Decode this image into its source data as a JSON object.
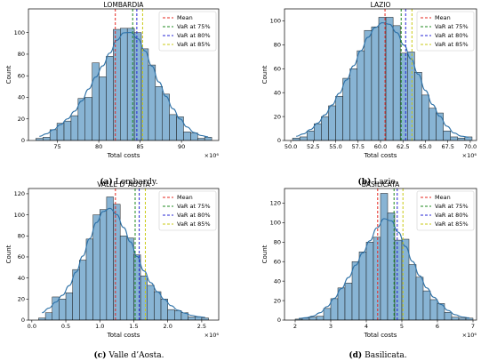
{
  "figure": {
    "captions": [
      {
        "label": "(a)",
        "text": "Lombardy."
      },
      {
        "label": "(b)",
        "text": "Lazio."
      },
      {
        "label": "(c)",
        "text": "Valle d’Aosta."
      },
      {
        "label": "(d)",
        "text": "Basilicata."
      }
    ]
  },
  "colors": {
    "bar_fill": "#88b4d4",
    "bar_edge": "#1a1a1a",
    "kde": "#2e72a8",
    "mean": "#e5271f",
    "var75": "#1f8a1f",
    "var80": "#2424d6",
    "var85": "#c9c914"
  },
  "chart_data": [
    {
      "type": "histogram",
      "title": "LOMBARDIA",
      "xlabel": "Total costs",
      "ylabel": "Count",
      "multiplier": "×10⁶",
      "xlim": [
        71.5,
        94.5
      ],
      "ylim": [
        0,
        122
      ],
      "xticks": [
        75,
        80,
        85,
        90
      ],
      "yticks": [
        0,
        20,
        40,
        60,
        80,
        100
      ],
      "bin_start": 72.4,
      "bin_width": 0.85,
      "counts": [
        2,
        3,
        10,
        16,
        18,
        23,
        39,
        40,
        72,
        59,
        78,
        103,
        104,
        104,
        100,
        85,
        70,
        50,
        43,
        24,
        22,
        8,
        7,
        2,
        3
      ],
      "lines": [
        {
          "name": "Mean",
          "x": 82.0,
          "key": "mean"
        },
        {
          "name": "VaR at 75%",
          "x": 84.1,
          "key": "var75"
        },
        {
          "name": "VaR at 80%",
          "x": 84.6,
          "key": "var80"
        },
        {
          "name": "VaR at 85%",
          "x": 85.3,
          "key": "var85"
        }
      ]
    },
    {
      "type": "histogram",
      "title": "LAZIO",
      "xlabel": "Total costs",
      "ylabel": "Count",
      "multiplier": "×10⁶",
      "xlim": [
        49.3,
        70.7
      ],
      "ylim": [
        0,
        110
      ],
      "xticks": [
        50.0,
        52.5,
        55.0,
        57.5,
        60.0,
        62.5,
        65.0,
        67.5,
        70.0
      ],
      "yticks": [
        0,
        20,
        40,
        60,
        80,
        100
      ],
      "bin_start": 50.2,
      "bin_width": 0.8,
      "counts": [
        2,
        3,
        8,
        14,
        20,
        29,
        37,
        52,
        60,
        75,
        92,
        95,
        103,
        103,
        96,
        73,
        74,
        57,
        38,
        27,
        23,
        8,
        3,
        2,
        3
      ],
      "lines": [
        {
          "name": "Mean",
          "x": 60.5,
          "key": "mean"
        },
        {
          "name": "VaR at 75%",
          "x": 62.3,
          "key": "var75"
        },
        {
          "name": "VaR at 80%",
          "x": 62.8,
          "key": "var80"
        },
        {
          "name": "VaR at 85%",
          "x": 63.5,
          "key": "var85"
        }
      ]
    },
    {
      "type": "histogram",
      "title": "VALLE D`AOSTA",
      "xlabel": "Total costs",
      "ylabel": "Count",
      "multiplier": "×10⁶",
      "xlim": [
        -0.05,
        2.75
      ],
      "ylim": [
        0,
        125
      ],
      "xticks": [
        0.0,
        0.5,
        1.0,
        1.5,
        2.0,
        2.5
      ],
      "yticks": [
        0,
        20,
        40,
        60,
        80,
        100,
        120
      ],
      "bin_start": 0.1,
      "bin_width": 0.1,
      "counts": [
        2,
        7,
        22,
        20,
        26,
        48,
        57,
        77,
        100,
        105,
        117,
        110,
        80,
        78,
        62,
        42,
        33,
        27,
        20,
        10,
        9,
        7,
        3,
        3,
        2
      ],
      "lines": [
        {
          "name": "Mean",
          "x": 1.23,
          "key": "mean"
        },
        {
          "name": "VaR at 75%",
          "x": 1.52,
          "key": "var75"
        },
        {
          "name": "VaR at 80%",
          "x": 1.58,
          "key": "var80"
        },
        {
          "name": "VaR at 85%",
          "x": 1.67,
          "key": "var85"
        }
      ]
    },
    {
      "type": "histogram",
      "title": "BASILICATA",
      "xlabel": "Total costs",
      "ylabel": "Count",
      "multiplier": "×10⁶",
      "xlim": [
        1.7,
        7.1
      ],
      "ylim": [
        0,
        135
      ],
      "xticks": [
        2,
        3,
        4,
        5,
        6,
        7
      ],
      "yticks": [
        0,
        20,
        40,
        60,
        80,
        100,
        120
      ],
      "bin_start": 2.0,
      "bin_width": 0.2,
      "counts": [
        1,
        2,
        3,
        4,
        12,
        22,
        33,
        38,
        60,
        70,
        80,
        85,
        130,
        110,
        82,
        83,
        57,
        44,
        30,
        21,
        17,
        8,
        3,
        2,
        2
      ],
      "lines": [
        {
          "name": "Mean",
          "x": 4.32,
          "key": "mean"
        },
        {
          "name": "VaR at 75%",
          "x": 4.78,
          "key": "var75"
        },
        {
          "name": "VaR at 80%",
          "x": 4.87,
          "key": "var80"
        },
        {
          "name": "VaR at 85%",
          "x": 5.03,
          "key": "var85"
        }
      ]
    }
  ]
}
